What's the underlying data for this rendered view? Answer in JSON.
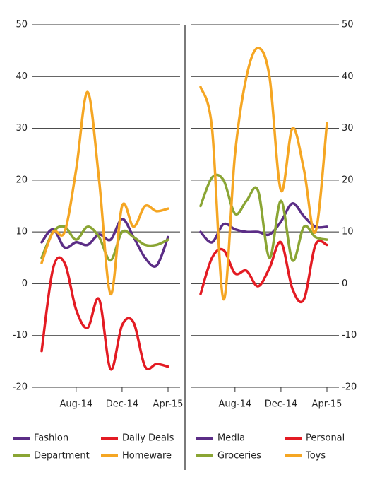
{
  "chart_data": [
    {
      "type": "line",
      "axis_side": "left",
      "grid": true,
      "categories": [
        null,
        null,
        null,
        "Aug-14",
        null,
        null,
        null,
        "Dec-14",
        null,
        null,
        null,
        "Apr-15"
      ],
      "ylim": [
        -20,
        50
      ],
      "yticks": [
        -20,
        -10,
        0,
        10,
        20,
        30,
        40,
        50
      ],
      "series": [
        {
          "name": "Fashion",
          "color": "#5b2d86",
          "values": [
            8,
            10.5,
            7,
            8,
            7.5,
            9.5,
            8.5,
            12.5,
            9,
            5,
            3.5,
            9
          ]
        },
        {
          "name": "Daily Deals",
          "color": "#e31b23",
          "values": [
            -13,
            3,
            4,
            -5,
            -8.5,
            -3,
            -16.5,
            -8,
            -7.5,
            -16,
            -15.5,
            -16
          ]
        },
        {
          "name": "Department",
          "color": "#8aa534",
          "values": [
            5,
            10,
            11,
            8.5,
            11,
            9,
            4.5,
            10,
            9,
            7.5,
            7.5,
            8.5
          ]
        },
        {
          "name": "Homeware",
          "color": "#f5a623",
          "values": [
            4,
            10,
            10,
            22,
            37,
            20,
            -2,
            15,
            11,
            15,
            14,
            14.5
          ]
        }
      ]
    },
    {
      "type": "line",
      "axis_side": "right",
      "grid": true,
      "categories": [
        null,
        null,
        null,
        "Aug-14",
        null,
        null,
        null,
        "Dec-14",
        null,
        null,
        null,
        "Apr-15"
      ],
      "ylim": [
        -20,
        50
      ],
      "yticks": [
        -20,
        -10,
        0,
        10,
        20,
        30,
        40,
        50
      ],
      "series": [
        {
          "name": "Media",
          "color": "#5b2d86",
          "values": [
            10,
            8,
            11.5,
            10.5,
            10,
            10,
            9.5,
            12,
            15.5,
            13,
            11,
            11
          ]
        },
        {
          "name": "Personal",
          "color": "#e31b23",
          "values": [
            -2,
            5,
            6.5,
            2,
            2.5,
            -0.5,
            3,
            8,
            -1,
            -3,
            7.5,
            7.5
          ]
        },
        {
          "name": "Groceries",
          "color": "#8aa534",
          "values": [
            15,
            20.5,
            20,
            13.5,
            16,
            18,
            5,
            16,
            4.5,
            11,
            9,
            8.5
          ]
        },
        {
          "name": "Toys",
          "color": "#f5a623",
          "values": [
            38,
            30,
            -3,
            25,
            40,
            45.5,
            40,
            18,
            30,
            22,
            10,
            31
          ]
        }
      ]
    }
  ]
}
